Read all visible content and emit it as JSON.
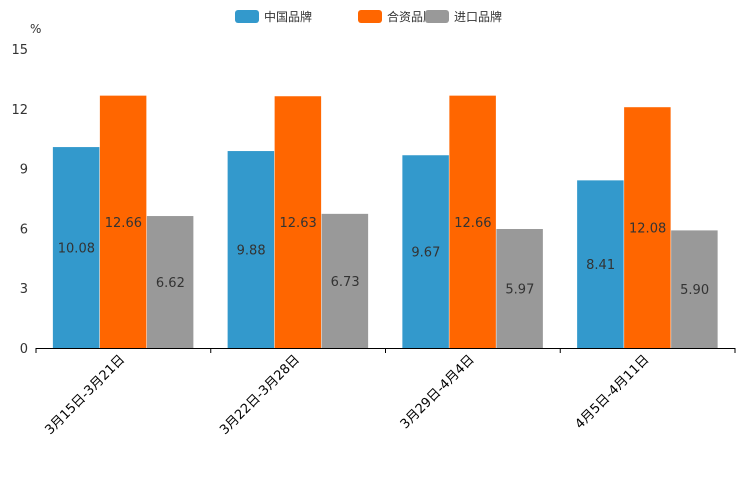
{
  "chart_data": {
    "type": "bar",
    "title": "",
    "ylabel": "%",
    "xlabel": "",
    "ylim": [
      0,
      15
    ],
    "yticks": [
      "0",
      "3",
      "6",
      "9",
      "12",
      "15"
    ],
    "legend_position": "top-center",
    "categories": [
      "3月15日-3月21日",
      "3月22日-3月28日",
      "3月29日-4月4日",
      "4月5日-4月11日"
    ],
    "series": [
      {
        "name": "中国品牌",
        "color": "#3399cc",
        "values": [
          10.08,
          9.88,
          9.67,
          8.41
        ],
        "labels": [
          "10.08",
          "9.88",
          "9.67",
          "8.41"
        ]
      },
      {
        "name": "合资品牌",
        "color": "#ff6600",
        "values": [
          12.66,
          12.63,
          12.66,
          12.08
        ],
        "labels": [
          "12.66",
          "12.63",
          "12.66",
          "12.08"
        ]
      },
      {
        "name": "进口品牌",
        "color": "#999999",
        "values": [
          6.62,
          6.73,
          5.97,
          5.9
        ],
        "labels": [
          "6.62",
          "6.73",
          "5.97",
          "5.90"
        ]
      }
    ]
  }
}
